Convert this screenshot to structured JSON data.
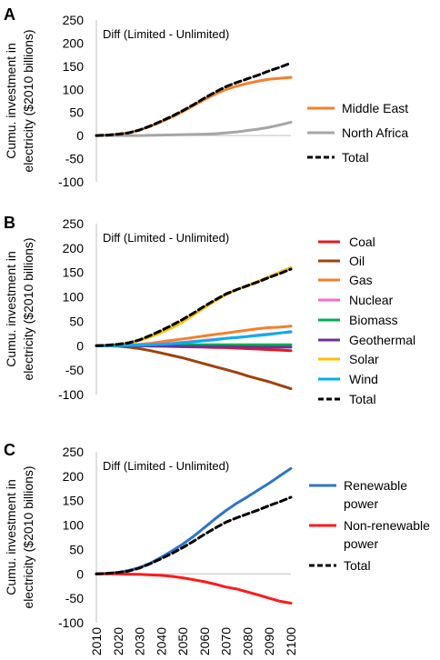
{
  "chart_data": [
    {
      "type": "line",
      "panel_letter": "A",
      "annotation": "Diff (Limited  - Unlimited)",
      "ylabel": [
        "Cumu. investment in",
        "electricity ($2010 billions)"
      ],
      "ylim": [
        -100,
        250
      ],
      "yticks": [
        -100,
        -50,
        0,
        50,
        100,
        150,
        200,
        250
      ],
      "x": [
        2010,
        2015,
        2020,
        2025,
        2030,
        2035,
        2040,
        2045,
        2050,
        2055,
        2060,
        2065,
        2070,
        2075,
        2080,
        2085,
        2090,
        2095,
        2100
      ],
      "series": [
        {
          "name": "Middle East",
          "color": "#F4802A",
          "dashed": false,
          "values": [
            0,
            1,
            3,
            6,
            12,
            20,
            30,
            40,
            52,
            65,
            78,
            90,
            100,
            107,
            113,
            118,
            122,
            124,
            126
          ]
        },
        {
          "name": "North Africa",
          "color": "#A6A6A6",
          "dashed": false,
          "values": [
            0,
            0,
            0,
            0,
            0,
            0.5,
            1,
            1.5,
            2,
            2.5,
            3,
            4,
            6,
            8,
            11,
            14,
            18,
            23,
            29
          ]
        },
        {
          "name": "Total",
          "color": "#000000",
          "dashed": true,
          "values": [
            0,
            1,
            3,
            6,
            12,
            21,
            31,
            42,
            54,
            67,
            81,
            94,
            106,
            115,
            123,
            131,
            140,
            148,
            157
          ]
        }
      ]
    },
    {
      "type": "line",
      "panel_letter": "B",
      "annotation": "Diff (Limited  - Unlimited)",
      "ylabel": [
        "Cumu. investment in",
        "electricity ($2010 billions)"
      ],
      "ylim": [
        -100,
        250
      ],
      "yticks": [
        -100,
        -50,
        0,
        50,
        100,
        150,
        200,
        250
      ],
      "x": [
        2010,
        2015,
        2020,
        2025,
        2030,
        2035,
        2040,
        2045,
        2050,
        2055,
        2060,
        2065,
        2070,
        2075,
        2080,
        2085,
        2090,
        2095,
        2100
      ],
      "series": [
        {
          "name": "Coal",
          "color": "#E31A1C",
          "dashed": false,
          "values": [
            0,
            0,
            0,
            0,
            0,
            -0.5,
            -1,
            -1.5,
            -2,
            -2.5,
            -3,
            -3.5,
            -4,
            -5,
            -6,
            -7,
            -8,
            -9,
            -10
          ]
        },
        {
          "name": "Oil",
          "color": "#A0410D",
          "dashed": false,
          "values": [
            0,
            0,
            -1,
            -3,
            -6,
            -10,
            -15,
            -20,
            -25,
            -31,
            -37,
            -43,
            -49,
            -55,
            -62,
            -68,
            -74,
            -81,
            -88
          ]
        },
        {
          "name": "Gas",
          "color": "#F4802A",
          "dashed": false,
          "values": [
            0,
            0,
            1,
            2,
            3,
            5,
            8,
            11,
            14,
            17,
            20,
            23,
            26,
            29,
            32,
            35,
            37,
            38,
            40
          ]
        },
        {
          "name": "Nuclear",
          "color": "#FF66C4",
          "dashed": false,
          "values": [
            0,
            0,
            0.5,
            1,
            2,
            3,
            4,
            5,
            7,
            9,
            11,
            13,
            15,
            17,
            19,
            22,
            24,
            26,
            28
          ]
        },
        {
          "name": "Biomass",
          "color": "#00B050",
          "dashed": false,
          "values": [
            0,
            0,
            0,
            0,
            0.5,
            1,
            1,
            1.5,
            2,
            2,
            2,
            2,
            2,
            2,
            2,
            2,
            2,
            2,
            2
          ]
        },
        {
          "name": "Geothermal",
          "color": "#7030A0",
          "dashed": false,
          "values": [
            0,
            0,
            0,
            0,
            0,
            -0.5,
            -1,
            -1,
            -1.5,
            -1.5,
            -2,
            -2,
            -2,
            -2.5,
            -2.5,
            -3,
            -3,
            -3,
            -3
          ]
        },
        {
          "name": "Solar",
          "color": "#FFC000",
          "dashed": false,
          "values": [
            0,
            1,
            3,
            6,
            11,
            18,
            27,
            37,
            49,
            63,
            78,
            92,
            105,
            115,
            123,
            132,
            141,
            151,
            160
          ]
        },
        {
          "name": "Wind",
          "color": "#00B0F0",
          "dashed": false,
          "values": [
            0,
            0,
            0.5,
            1,
            1.5,
            2,
            3,
            4,
            6,
            8,
            10,
            12,
            15,
            17,
            19,
            21,
            23,
            26,
            29
          ]
        },
        {
          "name": "Total",
          "color": "#000000",
          "dashed": true,
          "values": [
            0,
            1,
            3,
            6,
            12,
            21,
            31,
            42,
            54,
            67,
            81,
            94,
            106,
            115,
            123,
            131,
            140,
            148,
            157
          ]
        }
      ]
    },
    {
      "type": "line",
      "panel_letter": "C",
      "annotation": "Diff (Limited  - Unlimited)",
      "ylabel": [
        "Cumu. investment in",
        "electricity ($2010 billions)"
      ],
      "ylim": [
        -100,
        250
      ],
      "yticks": [
        -100,
        -50,
        0,
        50,
        100,
        150,
        200,
        250
      ],
      "xticks": [
        2010,
        2020,
        2030,
        2040,
        2050,
        2060,
        2070,
        2080,
        2090,
        2100
      ],
      "x": [
        2010,
        2015,
        2020,
        2025,
        2030,
        2035,
        2040,
        2045,
        2050,
        2055,
        2060,
        2065,
        2070,
        2075,
        2080,
        2085,
        2090,
        2095,
        2100
      ],
      "series": [
        {
          "name": "Renewable power",
          "legend_lines": [
            "Renewable",
            "power"
          ],
          "color": "#2F75C8",
          "dashed": false,
          "values": [
            0,
            1,
            3,
            7,
            13,
            22,
            34,
            47,
            61,
            77,
            95,
            113,
            130,
            145,
            158,
            172,
            186,
            201,
            216
          ]
        },
        {
          "name": "Non-renewable power",
          "legend_lines": [
            "Non-renewable",
            "power"
          ],
          "color": "#FF1A1A",
          "dashed": false,
          "values": [
            0,
            0,
            0,
            -0.5,
            -1,
            -2,
            -3,
            -5,
            -8,
            -12,
            -16,
            -21,
            -27,
            -31,
            -37,
            -43,
            -50,
            -56,
            -60
          ]
        },
        {
          "name": "Total",
          "legend_lines": [
            "Total"
          ],
          "color": "#000000",
          "dashed": true,
          "values": [
            0,
            1,
            3,
            6,
            12,
            21,
            31,
            42,
            54,
            67,
            81,
            94,
            106,
            115,
            123,
            131,
            140,
            148,
            157
          ]
        }
      ]
    }
  ]
}
